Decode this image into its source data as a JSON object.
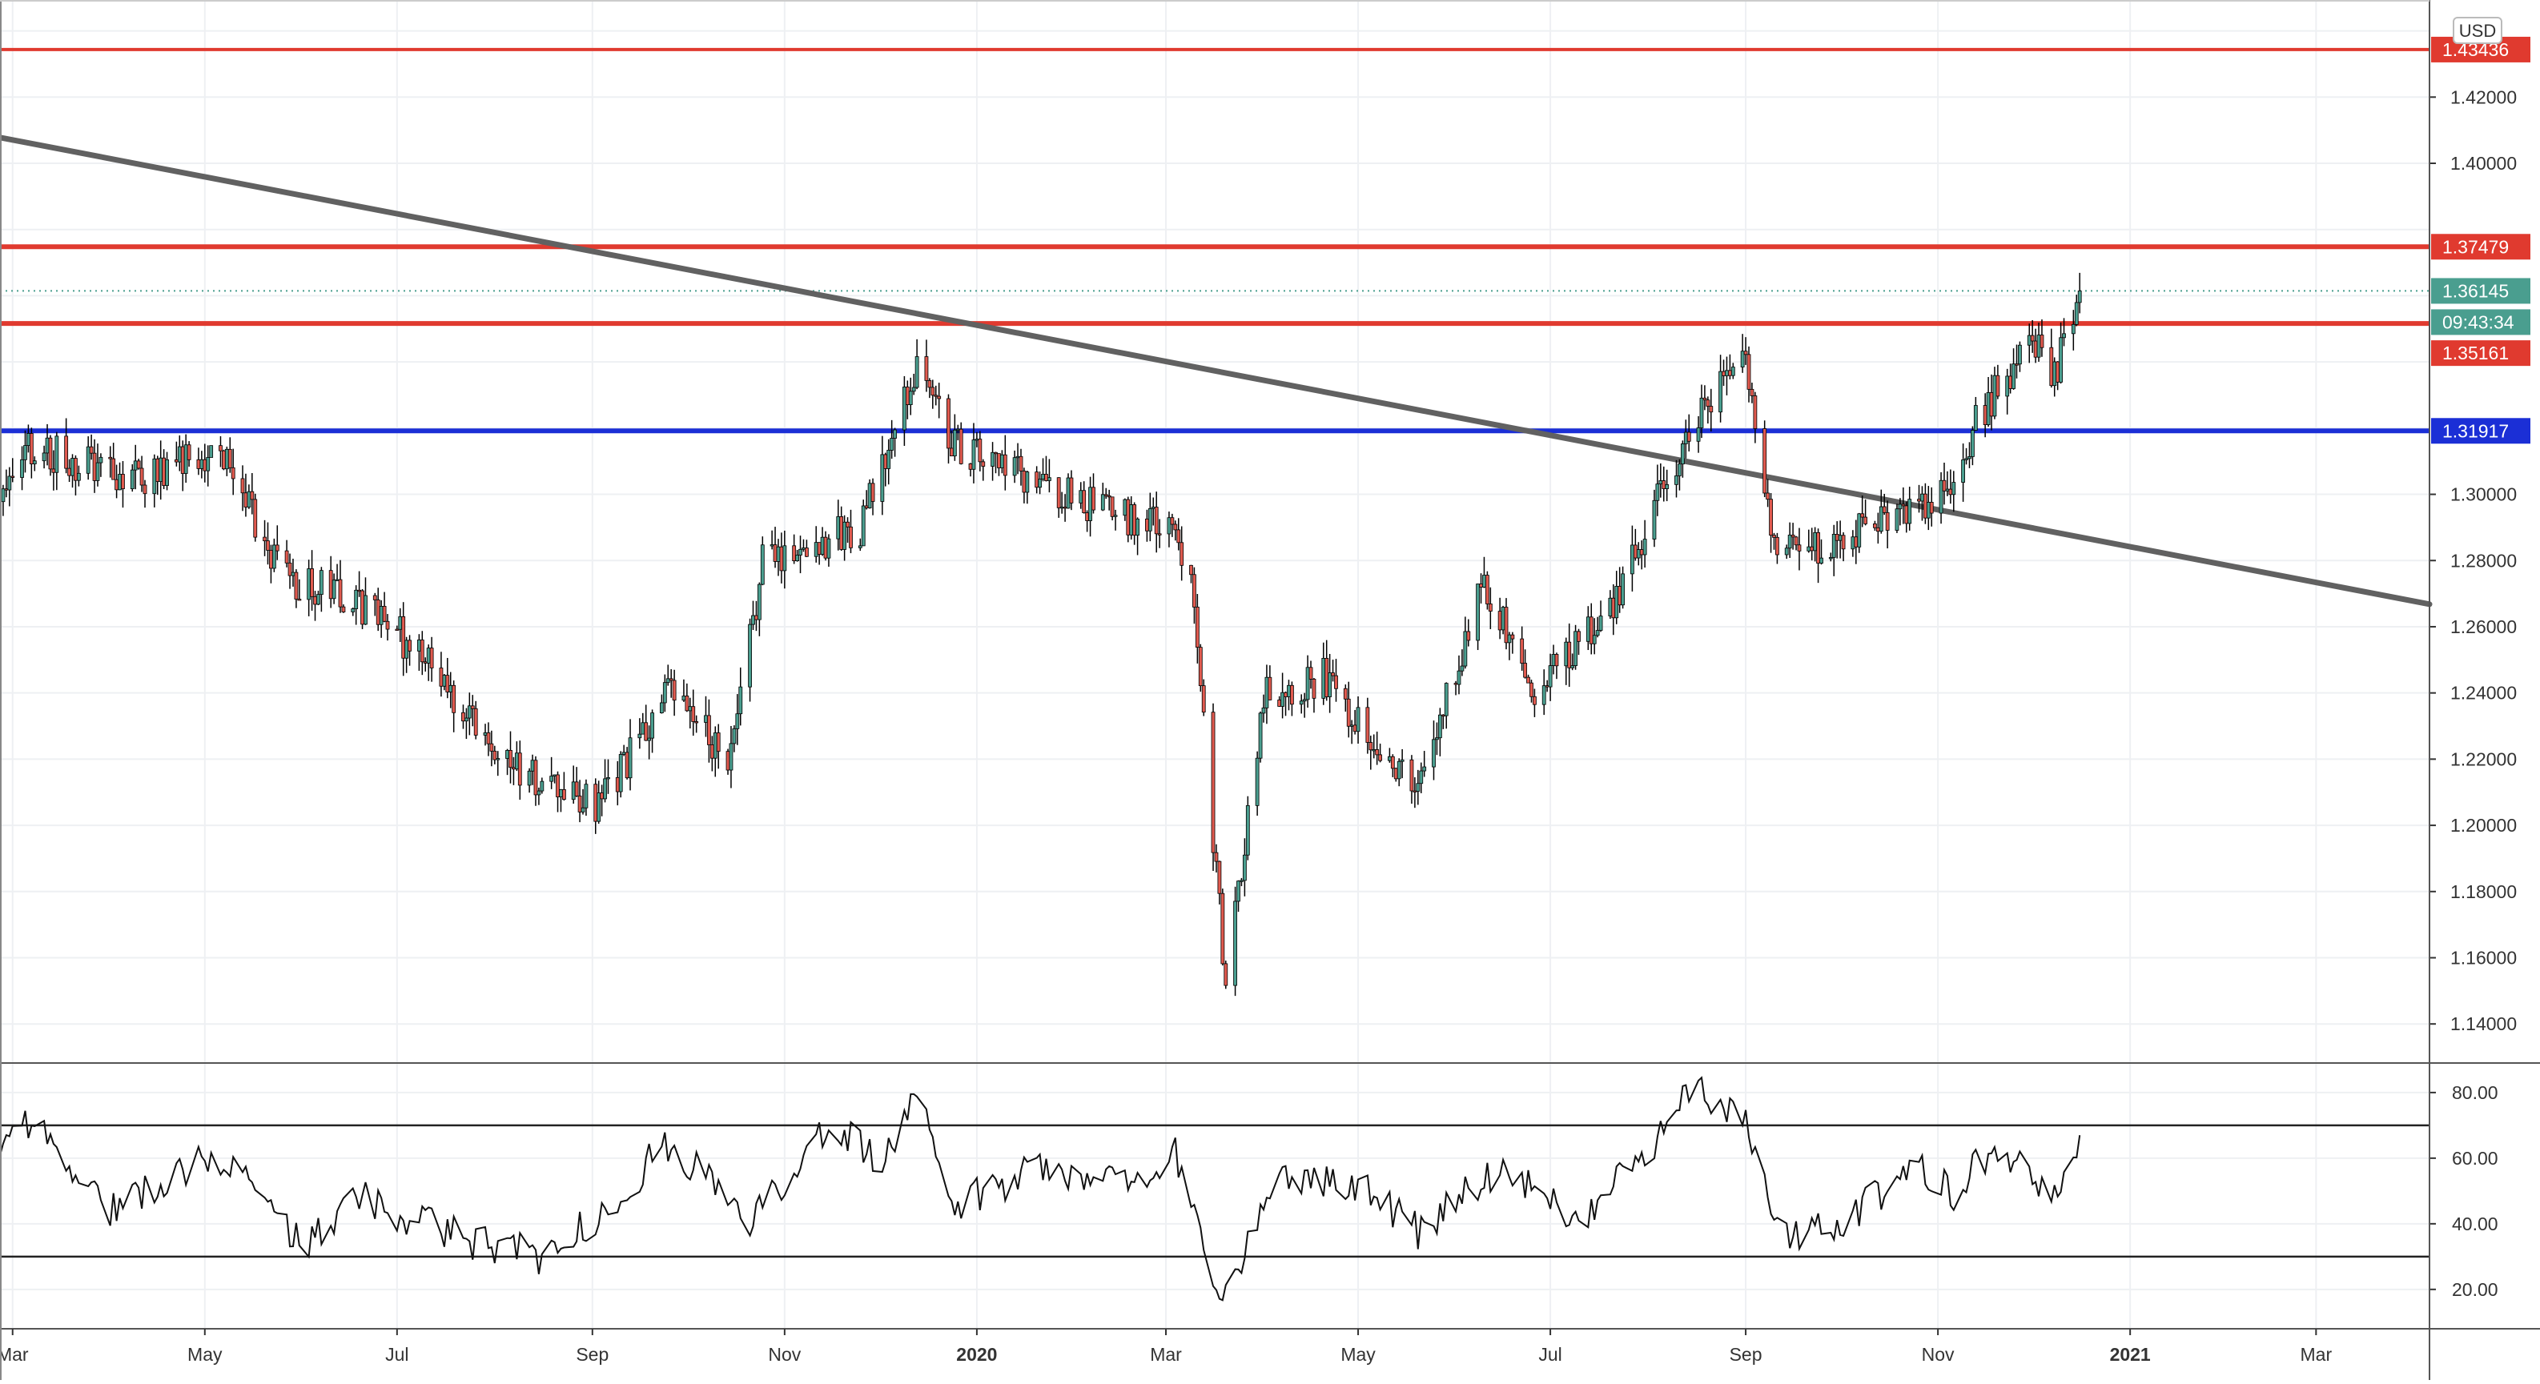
{
  "chart_data": {
    "type": "candlestick",
    "currency_badge": "USD",
    "countdown": "09:43:34",
    "price_axis": {
      "ylim": [
        1.1282,
        1.4474
      ],
      "ticks": [
        "1.14000",
        "1.16000",
        "1.18000",
        "1.20000",
        "1.22000",
        "1.24000",
        "1.26000",
        "1.28000",
        "1.30000",
        "1.40000",
        "1.42000"
      ],
      "tick_values": [
        1.14,
        1.16,
        1.18,
        1.2,
        1.22,
        1.24,
        1.26,
        1.28,
        1.3,
        1.4,
        1.42
      ]
    },
    "time_axis": {
      "labels": [
        "Mar",
        "May",
        "Jul",
        "Sep",
        "Nov",
        "2020",
        "Mar",
        "May",
        "Jul",
        "Sep",
        "Nov",
        "2021",
        "Mar"
      ],
      "dates": [
        "2019-03-01",
        "2019-05-01",
        "2019-07-01",
        "2019-09-01",
        "2019-11-01",
        "2020-01-01",
        "2020-03-01",
        "2020-05-01",
        "2020-07-01",
        "2020-09-01",
        "2020-11-01",
        "2021-01-01",
        "2021-03-01"
      ],
      "bold": [
        "2020",
        "2021"
      ],
      "range": [
        "2019-02-25",
        "2021-04-06"
      ]
    },
    "horizontal_levels": [
      {
        "value": 1.43436,
        "label": "1.43436",
        "color": "#e03a2f"
      },
      {
        "value": 1.37479,
        "label": "1.37479",
        "color": "#e03a2f"
      },
      {
        "value": 1.35161,
        "label": "1.35161",
        "color": "#e03a2f"
      },
      {
        "value": 1.31917,
        "label": "1.31917",
        "color": "#1b2fd6"
      }
    ],
    "last_price": {
      "value": 1.36145,
      "label": "1.36145",
      "color": "#4a9e8f"
    },
    "trendline": {
      "start": {
        "date": "2019-02-25",
        "value": 1.4078
      },
      "end": {
        "date": "2021-04-06",
        "value": 1.2668
      },
      "color": "#616161"
    },
    "ohlc_anchors": {
      "dates": [
        "2019-02-25",
        "2019-03-05",
        "2019-03-20",
        "2019-04-15",
        "2019-05-05",
        "2019-05-25",
        "2019-06-15",
        "2019-07-05",
        "2019-08-10",
        "2019-09-03",
        "2019-09-25",
        "2019-10-15",
        "2019-10-25",
        "2019-11-25",
        "2019-12-05",
        "2019-12-13",
        "2019-12-25",
        "2020-01-15",
        "2020-02-10",
        "2020-03-01",
        "2020-03-09",
        "2020-03-20",
        "2020-04-01",
        "2020-04-20",
        "2020-05-20",
        "2020-06-10",
        "2020-06-25",
        "2020-07-20",
        "2020-08-10",
        "2020-08-20",
        "2020-09-01",
        "2020-09-10",
        "2020-09-25",
        "2020-10-20",
        "2020-11-02",
        "2020-11-15",
        "2020-12-01",
        "2020-12-08",
        "2020-12-16"
      ],
      "values": [
        1.3,
        1.315,
        1.31,
        1.305,
        1.315,
        1.275,
        1.27,
        1.255,
        1.215,
        1.205,
        1.24,
        1.22,
        1.28,
        1.29,
        1.315,
        1.34,
        1.315,
        1.305,
        1.295,
        1.29,
        1.28,
        1.15,
        1.24,
        1.245,
        1.21,
        1.275,
        1.24,
        1.265,
        1.31,
        1.33,
        1.34,
        1.285,
        1.285,
        1.295,
        1.3,
        1.325,
        1.345,
        1.335,
        1.3614
      ]
    },
    "rsi": {
      "ylim": [
        8,
        89
      ],
      "ticks": [
        "80.00",
        "60.00",
        "40.00",
        "20.00"
      ],
      "tick_values": [
        80,
        60,
        40,
        20
      ],
      "levels": [
        70,
        30
      ],
      "anchor_dates": [
        "2019-02-25",
        "2019-03-05",
        "2019-04-01",
        "2019-05-05",
        "2019-06-01",
        "2019-06-20",
        "2019-07-20",
        "2019-08-15",
        "2019-09-03",
        "2019-09-25",
        "2019-10-22",
        "2019-11-15",
        "2019-12-01",
        "2019-12-13",
        "2019-12-25",
        "2020-01-20",
        "2020-02-20",
        "2020-03-04",
        "2020-03-19",
        "2020-04-05",
        "2020-05-01",
        "2020-05-20",
        "2020-06-15",
        "2020-07-10",
        "2020-08-01",
        "2020-08-15",
        "2020-09-01",
        "2020-09-12",
        "2020-09-30",
        "2020-10-25",
        "2020-11-05",
        "2020-11-20",
        "2020-12-09",
        "2020-12-16"
      ],
      "anchor_values": [
        60,
        72,
        45,
        62,
        33,
        48,
        36,
        30,
        42,
        65,
        40,
        72,
        58,
        77,
        45,
        58,
        52,
        62,
        16,
        55,
        52,
        38,
        58,
        42,
        62,
        82,
        70,
        36,
        40,
        58,
        49,
        64,
        46,
        67
      ]
    }
  }
}
